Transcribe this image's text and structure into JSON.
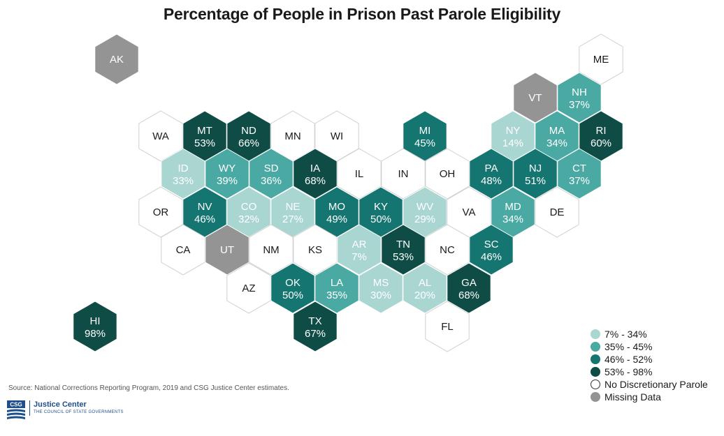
{
  "title": "Percentage of People in Prison Past Parole Eligibility",
  "colors": {
    "light": "#aad6d2",
    "mid": "#4aa9a3",
    "dark": "#157570",
    "darkest": "#0f4c45",
    "none": "#ffffff",
    "missing": "#949494",
    "stroke": "#cfcfcf"
  },
  "legend": [
    {
      "label": "7% - 34%",
      "color": "#aad6d2"
    },
    {
      "label": "35% - 45%",
      "color": "#4aa9a3"
    },
    {
      "label": "46% - 52%",
      "color": "#157570"
    },
    {
      "label": "53% - 98%",
      "color": "#0f4c45"
    },
    {
      "label": "No Discretionary Parole",
      "color": "#ffffff"
    },
    {
      "label": "Missing Data",
      "color": "#949494"
    }
  ],
  "states": [
    {
      "abbr": "AK",
      "value": "",
      "category": "missing"
    },
    {
      "abbr": "ME",
      "value": "",
      "category": "none"
    },
    {
      "abbr": "VT",
      "value": "",
      "category": "missing"
    },
    {
      "abbr": "NH",
      "value": "37%",
      "category": "mid"
    },
    {
      "abbr": "WA",
      "value": "",
      "category": "none"
    },
    {
      "abbr": "MT",
      "value": "53%",
      "category": "darkest"
    },
    {
      "abbr": "ND",
      "value": "66%",
      "category": "darkest"
    },
    {
      "abbr": "MN",
      "value": "",
      "category": "none"
    },
    {
      "abbr": "WI",
      "value": "",
      "category": "none"
    },
    {
      "abbr": "MI",
      "value": "45%",
      "category": "dark"
    },
    {
      "abbr": "NY",
      "value": "14%",
      "category": "light"
    },
    {
      "abbr": "MA",
      "value": "34%",
      "category": "mid"
    },
    {
      "abbr": "RI",
      "value": "60%",
      "category": "darkest"
    },
    {
      "abbr": "ID",
      "value": "33%",
      "category": "light"
    },
    {
      "abbr": "WY",
      "value": "39%",
      "category": "mid"
    },
    {
      "abbr": "SD",
      "value": "36%",
      "category": "mid"
    },
    {
      "abbr": "IA",
      "value": "68%",
      "category": "darkest"
    },
    {
      "abbr": "IL",
      "value": "",
      "category": "none"
    },
    {
      "abbr": "IN",
      "value": "",
      "category": "none"
    },
    {
      "abbr": "OH",
      "value": "",
      "category": "none"
    },
    {
      "abbr": "PA",
      "value": "48%",
      "category": "dark"
    },
    {
      "abbr": "NJ",
      "value": "51%",
      "category": "dark"
    },
    {
      "abbr": "CT",
      "value": "37%",
      "category": "mid"
    },
    {
      "abbr": "OR",
      "value": "",
      "category": "none"
    },
    {
      "abbr": "NV",
      "value": "46%",
      "category": "dark"
    },
    {
      "abbr": "CO",
      "value": "32%",
      "category": "light"
    },
    {
      "abbr": "NE",
      "value": "27%",
      "category": "light"
    },
    {
      "abbr": "MO",
      "value": "49%",
      "category": "dark"
    },
    {
      "abbr": "KY",
      "value": "50%",
      "category": "dark"
    },
    {
      "abbr": "WV",
      "value": "29%",
      "category": "light"
    },
    {
      "abbr": "VA",
      "value": "",
      "category": "none"
    },
    {
      "abbr": "MD",
      "value": "34%",
      "category": "mid"
    },
    {
      "abbr": "DE",
      "value": "",
      "category": "none"
    },
    {
      "abbr": "CA",
      "value": "",
      "category": "none"
    },
    {
      "abbr": "UT",
      "value": "",
      "category": "missing"
    },
    {
      "abbr": "NM",
      "value": "",
      "category": "none"
    },
    {
      "abbr": "KS",
      "value": "",
      "category": "none"
    },
    {
      "abbr": "AR",
      "value": "7%",
      "category": "light"
    },
    {
      "abbr": "TN",
      "value": "53%",
      "category": "darkest"
    },
    {
      "abbr": "NC",
      "value": "",
      "category": "none"
    },
    {
      "abbr": "SC",
      "value": "46%",
      "category": "dark"
    },
    {
      "abbr": "AZ",
      "value": "",
      "category": "none"
    },
    {
      "abbr": "OK",
      "value": "50%",
      "category": "dark"
    },
    {
      "abbr": "LA",
      "value": "35%",
      "category": "mid"
    },
    {
      "abbr": "MS",
      "value": "30%",
      "category": "light"
    },
    {
      "abbr": "AL",
      "value": "20%",
      "category": "light"
    },
    {
      "abbr": "GA",
      "value": "68%",
      "category": "darkest"
    },
    {
      "abbr": "HI",
      "value": "98%",
      "category": "darkest"
    },
    {
      "abbr": "TX",
      "value": "67%",
      "category": "darkest"
    },
    {
      "abbr": "FL",
      "value": "",
      "category": "none"
    }
  ],
  "source": "Source: National Corrections Reporting Program, 2019 and CSG Justice Center estimates.",
  "logo": {
    "mark": "CSG",
    "name": "Justice Center",
    "subtitle": "THE COUNCIL OF STATE GOVERNMENTS"
  }
}
